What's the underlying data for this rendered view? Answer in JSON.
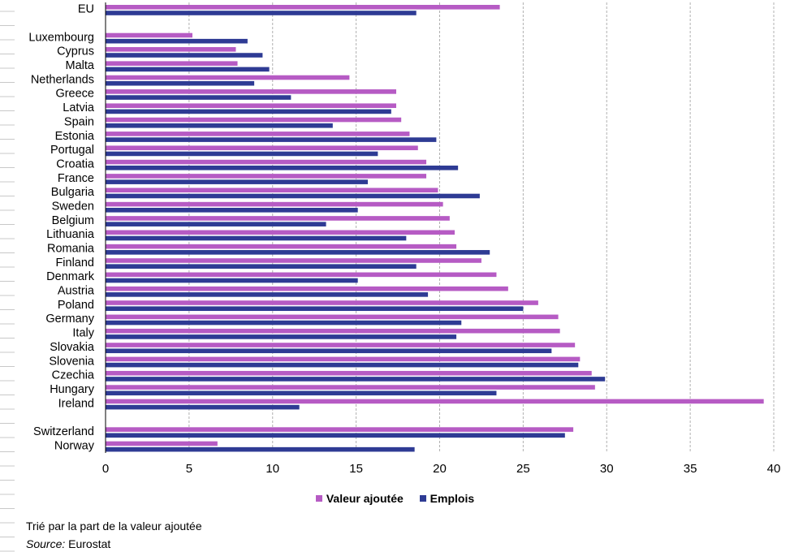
{
  "chart_data": {
    "type": "bar",
    "orientation": "horizontal",
    "title": "",
    "xlabel": "",
    "ylabel": "",
    "xlim": [
      0,
      40
    ],
    "x_ticks": [
      "0",
      "5",
      "10",
      "15",
      "20",
      "25",
      "30",
      "35",
      "40"
    ],
    "grid": "vertical dashed",
    "legend_position": "bottom",
    "category_groups": [
      [
        "EU"
      ],
      [
        "Luxembourg",
        "Cyprus",
        "Malta",
        "Netherlands",
        "Greece",
        "Latvia",
        "Spain",
        "Estonia",
        "Portugal",
        "Croatia",
        "France",
        "Bulgaria",
        "Sweden",
        "Belgium",
        "Lithuania",
        "Romania",
        "Finland",
        "Denmark",
        "Austria",
        "Poland",
        "Germany",
        "Italy",
        "Slovakia",
        "Slovenia",
        "Czechia",
        "Hungary",
        "Ireland"
      ],
      [
        "Switzerland",
        "Norway"
      ]
    ],
    "series": [
      {
        "name": "Valeur ajoutée",
        "color": "#b65bc4",
        "values": [
          23.6,
          5.2,
          7.8,
          7.9,
          14.6,
          17.4,
          17.4,
          17.7,
          18.2,
          18.7,
          19.2,
          19.2,
          19.9,
          20.2,
          20.6,
          20.9,
          21.0,
          22.5,
          23.4,
          24.1,
          25.9,
          27.1,
          27.2,
          28.1,
          28.4,
          29.1,
          29.3,
          39.4,
          28.0,
          6.7
        ]
      },
      {
        "name": "Emplois",
        "color": "#2e3b94",
        "values": [
          18.6,
          8.5,
          9.4,
          9.8,
          8.9,
          11.1,
          17.1,
          13.6,
          19.8,
          16.3,
          21.1,
          15.7,
          22.4,
          15.1,
          13.2,
          18.0,
          23.0,
          18.6,
          15.1,
          19.3,
          25.0,
          21.3,
          21.0,
          26.7,
          28.3,
          29.9,
          23.4,
          11.6,
          27.5,
          18.5
        ]
      }
    ]
  },
  "notes": {
    "sorted": "Trié par la part de la valeur ajoutée",
    "source_label": "Source:",
    "source_value": " Eurostat"
  }
}
